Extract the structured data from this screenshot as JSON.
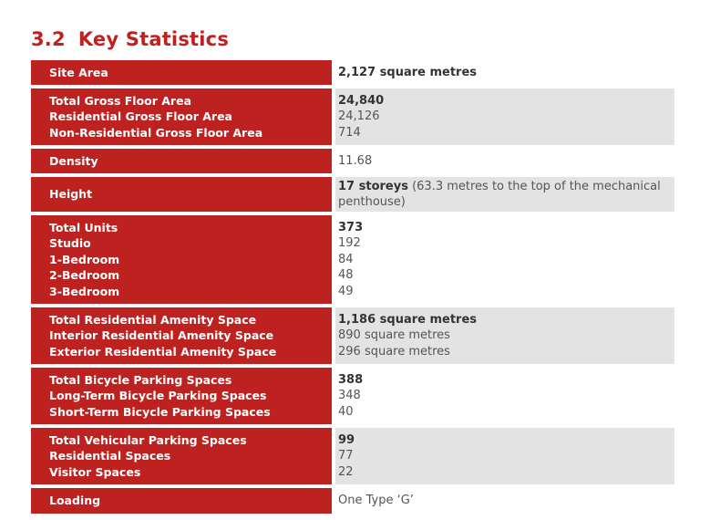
{
  "section": {
    "number": "3.2",
    "title": "Key Statistics"
  },
  "rows": [
    {
      "labels": [
        "Site Area"
      ],
      "values": [
        "2,127 square metres"
      ]
    },
    {
      "labels": [
        "Total Gross Floor Area",
        "Residential Gross Floor Area",
        "Non-Residential Gross Floor Area"
      ],
      "values": [
        "24,840",
        "24,126",
        "714"
      ]
    },
    {
      "labels": [
        "Density"
      ],
      "values": [
        "11.68"
      ]
    },
    {
      "labels": [
        "Height"
      ],
      "value_bold": "17 storeys",
      "value_rest": " (63.3 metres to the top of the mechanical penthouse)"
    },
    {
      "labels": [
        "Total Units",
        "Studio",
        "1-Bedroom",
        "2-Bedroom",
        "3-Bedroom"
      ],
      "values": [
        "373",
        "192",
        "84",
        "48",
        "49"
      ]
    },
    {
      "labels": [
        "Total Residential Amenity Space",
        "Interior Residential Amenity Space",
        "Exterior Residential Amenity Space"
      ],
      "values": [
        "1,186 square metres",
        "890 square metres",
        "296 square metres"
      ]
    },
    {
      "labels": [
        "Total Bicycle Parking Spaces",
        "Long-Term Bicycle Parking Spaces",
        "Short-Term Bicycle Parking Spaces"
      ],
      "values": [
        "388",
        "348",
        "40"
      ]
    },
    {
      "labels": [
        "Total Vehicular Parking Spaces",
        "Residential Spaces",
        "Visitor Spaces"
      ],
      "values": [
        "99",
        "77",
        "22"
      ]
    },
    {
      "labels": [
        "Loading"
      ],
      "values": [
        "One Type ‘G’"
      ]
    }
  ]
}
